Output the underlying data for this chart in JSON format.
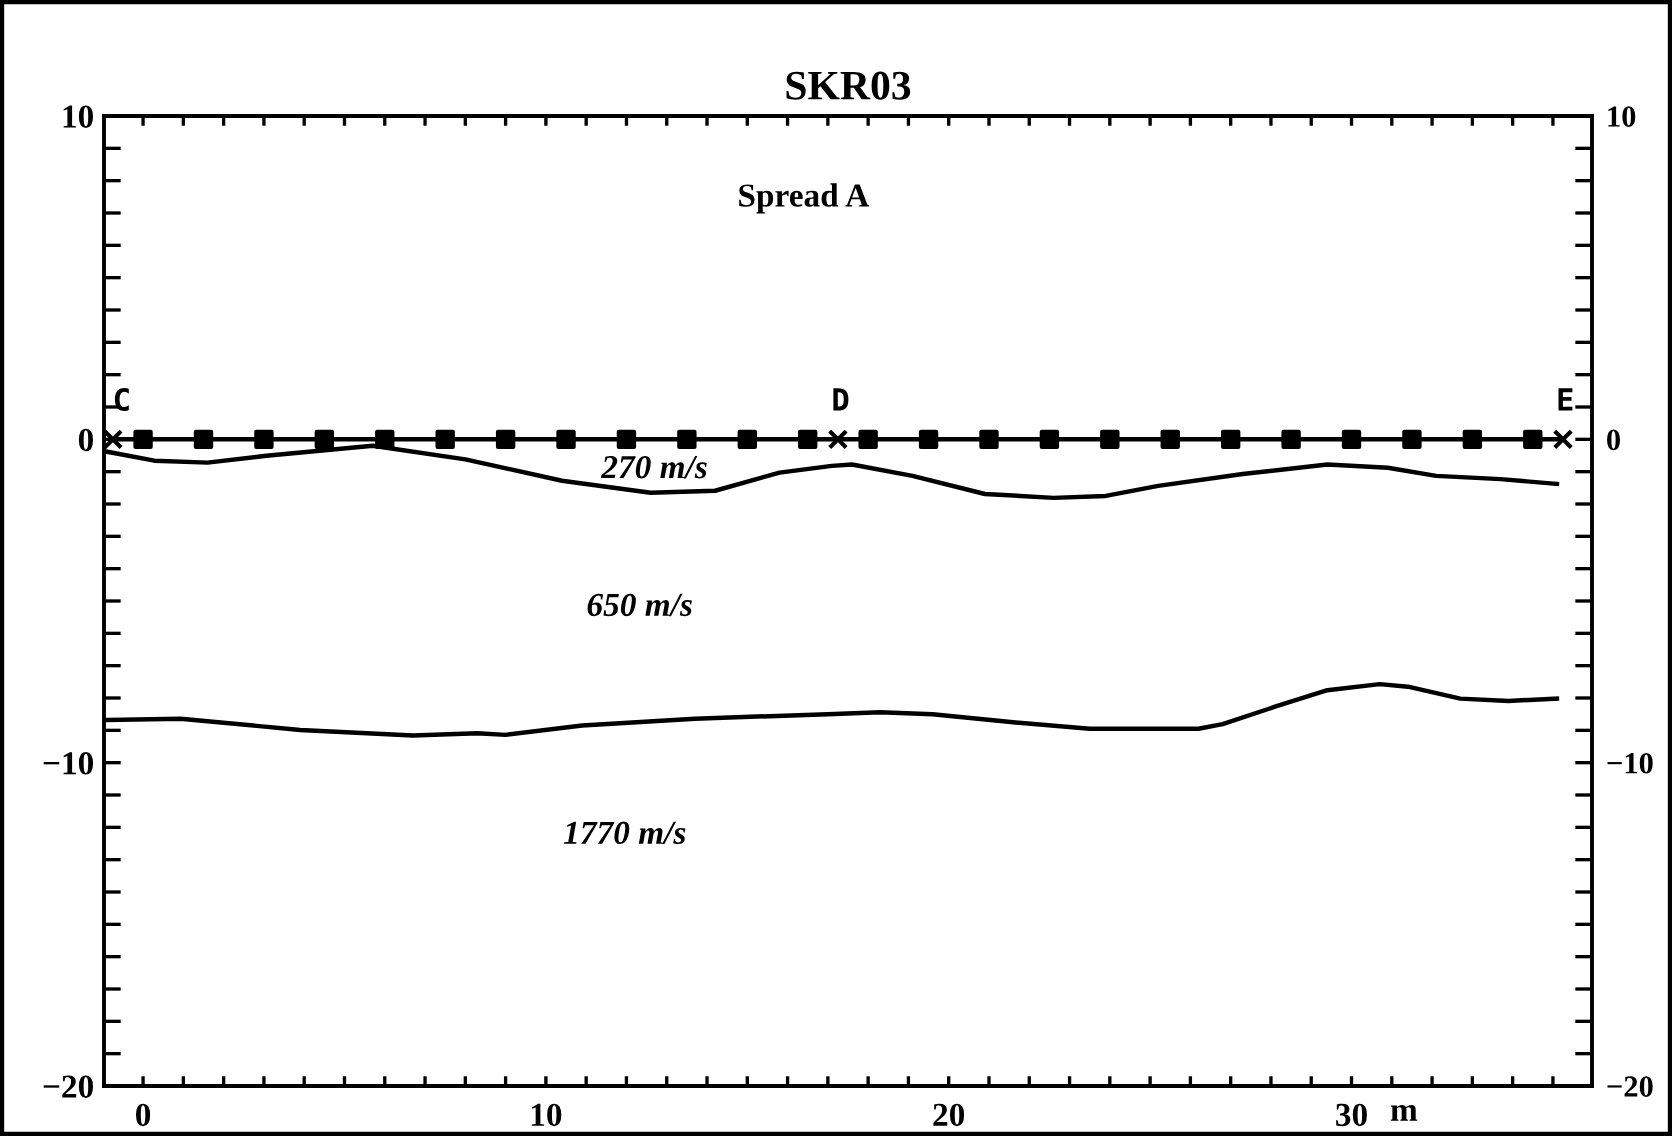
{
  "chart_data": {
    "type": "line",
    "title": "SKR03",
    "xlabel": "m",
    "xlim": [
      -0.97,
      35.97
    ],
    "ylim": [
      -20,
      10
    ],
    "y2lim": [
      -20,
      10
    ],
    "xticks": [
      0,
      {
        "value": 1,
        "label": null
      },
      {
        "value": 2,
        "label": null
      },
      {
        "value": 3,
        "label": null
      },
      {
        "value": 4,
        "label": null
      },
      {
        "value": 5,
        "label": null
      },
      {
        "value": 6,
        "label": null
      },
      {
        "value": 7,
        "label": null
      },
      {
        "value": 8,
        "label": null
      },
      {
        "value": 9,
        "label": null
      },
      10,
      {
        "value": 11,
        "label": null
      },
      {
        "value": 12,
        "label": null
      },
      {
        "value": 13,
        "label": null
      },
      {
        "value": 14,
        "label": null
      },
      {
        "value": 15,
        "label": null
      },
      {
        "value": 16,
        "label": null
      },
      {
        "value": 17,
        "label": null
      },
      {
        "value": 18,
        "label": null
      },
      {
        "value": 19,
        "label": null
      },
      20,
      {
        "value": 21,
        "label": null
      },
      {
        "value": 22,
        "label": null
      },
      {
        "value": 23,
        "label": null
      },
      {
        "value": 24,
        "label": null
      },
      {
        "value": 25,
        "label": null
      },
      {
        "value": 26,
        "label": null
      },
      {
        "value": 27,
        "label": null
      },
      {
        "value": 28,
        "label": null
      },
      {
        "value": 29,
        "label": null
      },
      30,
      {
        "value": 31,
        "label": null
      },
      {
        "value": 32,
        "label": null
      },
      {
        "value": 33,
        "label": null
      },
      {
        "value": 34,
        "label": null
      },
      {
        "value": 35,
        "label": null
      }
    ],
    "yticks": [
      {
        "value": -20,
        "label": "−20"
      },
      {
        "value": -19,
        "label": null
      },
      {
        "value": -18,
        "label": null
      },
      {
        "value": -17,
        "label": null
      },
      {
        "value": -16,
        "label": null
      },
      {
        "value": -15,
        "label": null
      },
      {
        "value": -14,
        "label": null
      },
      {
        "value": -13,
        "label": null
      },
      {
        "value": -12,
        "label": null
      },
      {
        "value": -11,
        "label": null
      },
      {
        "value": -10,
        "label": "−10"
      },
      {
        "value": -9,
        "label": null
      },
      {
        "value": -8,
        "label": null
      },
      {
        "value": -7,
        "label": null
      },
      {
        "value": -6,
        "label": null
      },
      {
        "value": -5,
        "label": null
      },
      {
        "value": -4,
        "label": null
      },
      {
        "value": -3,
        "label": null
      },
      {
        "value": -2,
        "label": null
      },
      {
        "value": -1,
        "label": null
      },
      0,
      {
        "value": 1,
        "label": null
      },
      {
        "value": 2,
        "label": null
      },
      {
        "value": 3,
        "label": null
      },
      {
        "value": 4,
        "label": null
      },
      {
        "value": 5,
        "label": null
      },
      {
        "value": 6,
        "label": null
      },
      {
        "value": 7,
        "label": null
      },
      {
        "value": 8,
        "label": null
      },
      {
        "value": 9,
        "label": null
      },
      10
    ],
    "y2ticks": [
      {
        "value": -20,
        "label": "−20"
      },
      {
        "value": -10,
        "label": "−10"
      },
      0,
      10
    ],
    "grid": false,
    "legend": false,
    "series": [
      {
        "color": "#000000",
        "x": [
          -0.75,
          35.25
        ],
        "values": [
          0,
          0
        ]
      },
      {
        "type": "scatter",
        "marker": "square",
        "color": "#000000",
        "x": [
          0,
          1.5,
          3,
          4.5,
          6,
          7.5,
          9,
          10.5,
          12,
          13.5,
          15,
          16.5,
          18,
          19.5,
          21,
          22.5,
          24,
          25.5,
          27,
          28.5,
          30,
          31.5,
          33,
          34.5
        ],
        "values": [
          0,
          0,
          0,
          0,
          0,
          0,
          0,
          0,
          0,
          0,
          0,
          0,
          0,
          0,
          0,
          0,
          0,
          0,
          0,
          0,
          0,
          0,
          0,
          0
        ]
      },
      {
        "type": "scatter",
        "marker": "cross",
        "color": "#000000",
        "x": [
          -0.75,
          17.25,
          35.25
        ],
        "values": [
          0,
          0,
          0
        ]
      },
      {
        "color": "#000000",
        "x": [
          -0.95,
          0.28,
          1.6,
          3.06,
          5.7,
          8.0,
          10.4,
          12.6,
          14.2,
          15.8,
          17.1,
          17.6,
          19.1,
          20.9,
          22.6,
          23.9,
          25.2,
          27.3,
          29.4,
          30.9,
          32.1,
          33.7,
          35.1
        ],
        "values": [
          -0.37,
          -0.66,
          -0.72,
          -0.51,
          -0.2,
          -0.62,
          -1.28,
          -1.65,
          -1.59,
          -1.03,
          -0.82,
          -0.78,
          -1.13,
          -1.69,
          -1.81,
          -1.75,
          -1.44,
          -1.07,
          -0.78,
          -0.88,
          -1.13,
          -1.23,
          -1.38
        ]
      },
      {
        "color": "#000000",
        "x": [
          -0.87,
          0.93,
          3.9,
          6.7,
          8.3,
          9.0,
          10.9,
          13.7,
          17.0,
          18.3,
          19.6,
          21.6,
          23.5,
          26.2,
          26.8,
          28.1,
          29.4,
          30.7,
          31.4,
          32.7,
          33.9,
          35.1
        ],
        "values": [
          -8.68,
          -8.64,
          -8.99,
          -9.16,
          -9.09,
          -9.14,
          -8.85,
          -8.64,
          -8.5,
          -8.44,
          -8.5,
          -8.75,
          -8.95,
          -8.95,
          -8.81,
          -8.27,
          -7.76,
          -7.57,
          -7.65,
          -8.02,
          -8.09,
          -8.02
        ]
      }
    ],
    "annotations": [
      "Spread A",
      "C",
      "D",
      "E",
      "270 m/s",
      "650 m/s",
      "1770 m/s"
    ]
  }
}
